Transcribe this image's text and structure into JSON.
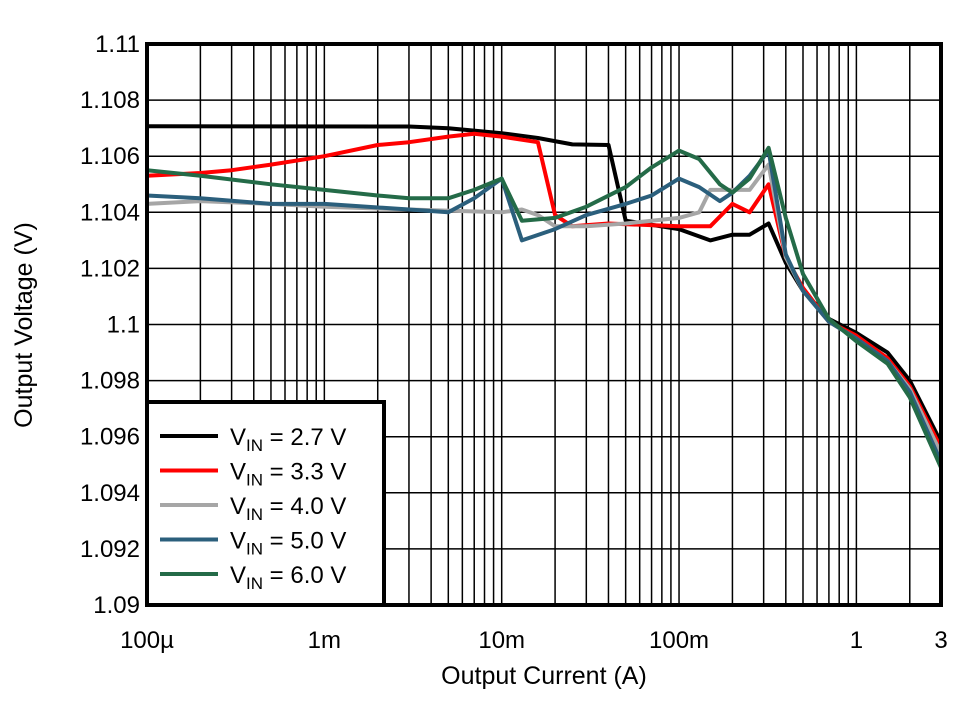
{
  "chart_data": {
    "type": "line",
    "xlabel": "Output Current (A)",
    "ylabel": "Output Voltage (V)",
    "xscale": "log",
    "xlim": [
      0.0001,
      3
    ],
    "ylim": [
      1.09,
      1.11
    ],
    "grid": true,
    "legend_position": "bottom-left",
    "x_ticks": [
      {
        "value": 0.0001,
        "label": "100µ"
      },
      {
        "value": 0.001,
        "label": "1m"
      },
      {
        "value": 0.01,
        "label": "10m"
      },
      {
        "value": 0.1,
        "label": "100m"
      },
      {
        "value": 1,
        "label": "1"
      },
      {
        "value": 3,
        "label": "3"
      }
    ],
    "y_ticks": [
      {
        "value": 1.11,
        "label": "1.11"
      },
      {
        "value": 1.108,
        "label": "1.108"
      },
      {
        "value": 1.106,
        "label": "1.106"
      },
      {
        "value": 1.104,
        "label": "1.104"
      },
      {
        "value": 1.102,
        "label": "1.102"
      },
      {
        "value": 1.1,
        "label": "1.1"
      },
      {
        "value": 1.098,
        "label": "1.098"
      },
      {
        "value": 1.096,
        "label": "1.096"
      },
      {
        "value": 1.094,
        "label": "1.094"
      },
      {
        "value": 1.092,
        "label": "1.092"
      },
      {
        "value": 1.09,
        "label": "1.09"
      }
    ],
    "series": [
      {
        "name": "VIN = 2.7 V",
        "name_main": "V",
        "name_sub": "IN",
        "name_rest": " = 2.7 V",
        "color": "#000000",
        "x": [
          0.0001,
          0.003,
          0.005,
          0.01,
          0.016,
          0.025,
          0.04,
          0.05,
          0.1,
          0.15,
          0.2,
          0.25,
          0.32,
          0.4,
          0.5,
          0.7,
          1,
          1.5,
          2,
          3
        ],
        "y": [
          1.10707,
          1.10706,
          1.107,
          1.10682,
          1.10665,
          1.10642,
          1.1064,
          1.1037,
          1.1034,
          1.103,
          1.1032,
          1.1032,
          1.1036,
          1.1022,
          1.1012,
          1.1002,
          1.0997,
          1.099,
          1.098,
          1.0958
        ]
      },
      {
        "name": "VIN = 3.3 V",
        "name_main": "V",
        "name_sub": "IN",
        "name_rest": " = 3.3 V",
        "color": "#FF0000",
        "x": [
          0.0001,
          0.0002,
          0.0003,
          0.0005,
          0.001,
          0.002,
          0.003,
          0.005,
          0.007,
          0.01,
          0.016,
          0.02,
          0.025,
          0.04,
          0.1,
          0.15,
          0.2,
          0.25,
          0.32,
          0.4,
          0.5,
          0.7,
          1,
          1.5,
          2,
          3
        ],
        "y": [
          1.1053,
          1.1054,
          1.1055,
          1.1057,
          1.106,
          1.1064,
          1.1065,
          1.1067,
          1.1068,
          1.1067,
          1.1065,
          1.1039,
          1.1035,
          1.1036,
          1.1035,
          1.1035,
          1.1043,
          1.104,
          1.105,
          1.1024,
          1.1013,
          1.1001,
          1.0996,
          1.0988,
          1.0978,
          1.0956
        ]
      },
      {
        "name": "VIN = 4.0 V",
        "name_main": "V",
        "name_sub": "IN",
        "name_rest": " = 4.0 V",
        "color": "#A6A6A6",
        "x": [
          0.0001,
          0.0002,
          0.0005,
          0.001,
          0.003,
          0.01,
          0.013,
          0.016,
          0.02,
          0.03,
          0.05,
          0.1,
          0.13,
          0.15,
          0.25,
          0.32,
          0.4,
          0.5,
          0.7,
          1,
          1.5,
          2,
          3
        ],
        "y": [
          1.1043,
          1.1044,
          1.1043,
          1.1042,
          1.1041,
          1.104,
          1.1041,
          1.1039,
          1.1035,
          1.1035,
          1.1036,
          1.1038,
          1.104,
          1.1048,
          1.1048,
          1.1057,
          1.1024,
          1.1012,
          1.1001,
          1.0995,
          1.0987,
          1.0977,
          1.0954
        ]
      },
      {
        "name": "VIN = 5.0 V",
        "name_main": "V",
        "name_sub": "IN",
        "name_rest": " = 5.0 V",
        "color": "#2B5F7C",
        "x": [
          0.0001,
          0.0002,
          0.0005,
          0.001,
          0.003,
          0.005,
          0.007,
          0.01,
          0.013,
          0.02,
          0.03,
          0.05,
          0.07,
          0.1,
          0.13,
          0.17,
          0.2,
          0.25,
          0.32,
          0.4,
          0.5,
          0.7,
          1,
          1.5,
          2,
          3
        ],
        "y": [
          1.1046,
          1.1045,
          1.1043,
          1.1043,
          1.1041,
          1.104,
          1.1045,
          1.1052,
          1.103,
          1.1034,
          1.1039,
          1.1043,
          1.1046,
          1.1052,
          1.1049,
          1.1044,
          1.1047,
          1.1053,
          1.1062,
          1.1025,
          1.1012,
          1.1001,
          1.0995,
          1.0987,
          1.0976,
          1.0951
        ]
      },
      {
        "name": "VIN = 6.0 V",
        "name_main": "V",
        "name_sub": "IN",
        "name_rest": " = 6.0 V",
        "color": "#246B48",
        "x": [
          0.0001,
          0.0002,
          0.0005,
          0.001,
          0.002,
          0.003,
          0.005,
          0.007,
          0.01,
          0.013,
          0.02,
          0.03,
          0.05,
          0.07,
          0.1,
          0.13,
          0.17,
          0.2,
          0.25,
          0.32,
          0.4,
          0.5,
          0.7,
          1,
          1.5,
          2,
          3
        ],
        "y": [
          1.1055,
          1.1053,
          1.105,
          1.1048,
          1.1046,
          1.1045,
          1.1045,
          1.1048,
          1.1052,
          1.1037,
          1.1038,
          1.1042,
          1.1049,
          1.1056,
          1.1062,
          1.1059,
          1.105,
          1.1047,
          1.1052,
          1.1063,
          1.1038,
          1.1018,
          1.1002,
          1.0994,
          1.0986,
          1.0974,
          1.0949
        ]
      }
    ]
  }
}
